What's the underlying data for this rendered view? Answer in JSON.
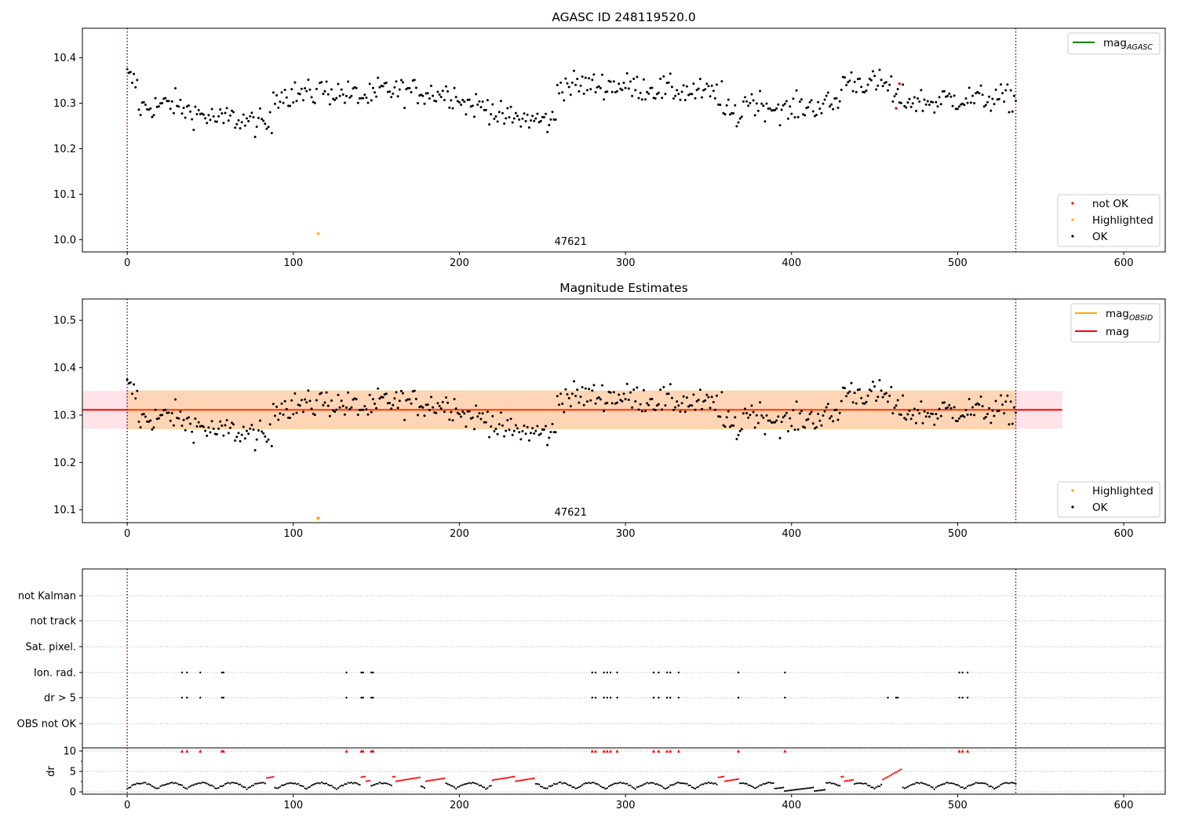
{
  "chart_data": [
    {
      "type": "scatter",
      "title": "AGASC ID 248119520.0",
      "xlim": [
        -27,
        625
      ],
      "ylim": [
        9.973,
        10.465
      ],
      "xticks": [
        0,
        100,
        200,
        300,
        400,
        500,
        600
      ],
      "yticks": [
        10.0,
        10.1,
        10.2,
        10.3,
        10.4
      ],
      "ytick_labels": [
        "10.0",
        "10.1",
        "10.2",
        "10.3",
        "10.4"
      ],
      "vlines": [
        0,
        535
      ],
      "vline_color": "#800080",
      "obsid_label": {
        "text": "47621",
        "x": 267
      },
      "legend_top": [
        {
          "name": "mag",
          "sub": "AGASC",
          "color": "#008000"
        }
      ],
      "legend_bottom": [
        {
          "name": "not OK",
          "color": "#ff0000"
        },
        {
          "name": "Highlighted",
          "color": "#ffa500"
        },
        {
          "name": "OK",
          "color": "#000000"
        }
      ],
      "highlighted": [
        {
          "x": 115,
          "y": 10.013
        }
      ],
      "not_ok": [
        {
          "x": 463,
          "y": 10.289
        },
        {
          "x": 465,
          "y": 10.343
        }
      ],
      "series_seed": 1
    },
    {
      "type": "scatter",
      "title": "Magnitude Estimates",
      "xlim": [
        -27,
        625
      ],
      "ylim": [
        10.073,
        10.545
      ],
      "xticks": [
        0,
        100,
        200,
        300,
        400,
        500,
        600
      ],
      "yticks": [
        10.1,
        10.2,
        10.3,
        10.4,
        10.5
      ],
      "ytick_labels": [
        "10.1",
        "10.2",
        "10.3",
        "10.4",
        "10.5"
      ],
      "vlines": [
        0,
        535
      ],
      "vline_color": "#800080",
      "obsid_label": {
        "text": "47621",
        "x": 267
      },
      "mag_line": {
        "y": 10.311,
        "x0": -27,
        "x1": 563,
        "color": "#ff0000"
      },
      "mag_band": {
        "y0": 10.271,
        "y1": 10.351,
        "x0": -27,
        "x1": 563,
        "color": "#ffc0cb"
      },
      "obsid_band": {
        "y0": 10.271,
        "y1": 10.351,
        "x0": 0,
        "x1": 535,
        "color": "#ffa500"
      },
      "legend_top": [
        {
          "name": "mag",
          "sub": "OBSID",
          "color": "#ffa500"
        },
        {
          "name": "mag",
          "sub": "",
          "color": "#ff0000"
        }
      ],
      "legend_bottom": [
        {
          "name": "Highlighted",
          "color": "#ffa500"
        },
        {
          "name": "OK",
          "color": "#000000"
        }
      ],
      "highlighted": [
        {
          "x": 115,
          "y": 10.08
        }
      ]
    },
    {
      "type": "scatter",
      "title": "",
      "xlim": [
        -27,
        625
      ],
      "xticks": [
        0,
        100,
        200,
        300,
        400,
        500,
        600
      ],
      "vlines": [
        0,
        535
      ],
      "vline_color": "#800080",
      "flag_labels": [
        "not Kalman",
        "not track",
        "Sat. pixel.",
        "Ion. rad.",
        "dr > 5",
        "OBS not OK"
      ],
      "flags": {
        "Ion. rad.": [
          33,
          36,
          44,
          57,
          58,
          132,
          141,
          142,
          147,
          148,
          280,
          282,
          287,
          289,
          291,
          295,
          317,
          320,
          325,
          327,
          332,
          368,
          396,
          501,
          503,
          506
        ],
        "dr > 5": [
          33,
          36,
          44,
          57,
          58,
          132,
          141,
          142,
          147,
          148,
          280,
          282,
          287,
          289,
          291,
          295,
          317,
          320,
          325,
          327,
          332,
          368,
          396,
          458,
          463,
          464,
          501,
          503,
          506
        ]
      },
      "dr_ylim": [
        -0.3,
        10.5
      ],
      "dr_yticks": [
        0,
        5,
        10
      ],
      "dr_ylabel": "dr",
      "dr_threshold_marks": [
        33,
        36,
        44,
        57,
        58,
        132,
        141,
        142,
        147,
        148,
        280,
        282,
        287,
        289,
        291,
        295,
        317,
        320,
        325,
        327,
        332,
        368,
        396,
        501,
        503,
        506
      ],
      "dr_red_ranges": [
        [
          84,
          88
        ],
        [
          141,
          146
        ],
        [
          160,
          176
        ],
        [
          180,
          191
        ],
        [
          220,
          245
        ],
        [
          356,
          368
        ],
        [
          430,
          437
        ],
        [
          455,
          466
        ]
      ]
    }
  ]
}
